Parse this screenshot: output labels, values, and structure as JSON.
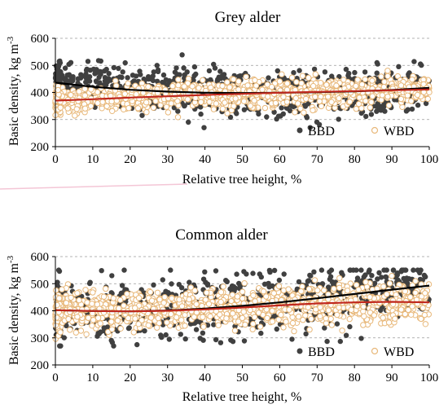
{
  "chart_data": [
    {
      "type": "scatter",
      "title": "Grey alder",
      "xlabel": "Relative tree height, %",
      "ylabel_main": "Basic density, kg m",
      "ylabel_sup": "-3",
      "xlim": [
        0,
        100
      ],
      "ylim": [
        200,
        600
      ],
      "xticks": [
        "0",
        "10",
        "20",
        "30",
        "40",
        "50",
        "60",
        "70",
        "80",
        "90",
        "100"
      ],
      "yticks": [
        "200",
        "300",
        "400",
        "500",
        "600"
      ],
      "gridlines": [
        300,
        400,
        500,
        600
      ],
      "legend_position": "bottom-right",
      "series": [
        {
          "name": "BBD",
          "marker": "filled-circle",
          "color": "#404040",
          "trend": {
            "x": [
              0,
              10,
              20,
              30,
              40,
              50,
              60,
              70,
              80,
              90,
              100
            ],
            "y": [
              436,
              421,
              410,
              403,
              399,
              398,
              399,
              401,
              404,
              409,
              417
            ]
          }
        },
        {
          "name": "WBD",
          "marker": "open-circle",
          "color": "#e8b87a",
          "trend": {
            "x": [
              0,
              10,
              20,
              30,
              40,
              50,
              60,
              70,
              80,
              90,
              100
            ],
            "y": [
              370,
              375,
              381,
              386,
              391,
              395,
              399,
              402,
              405,
              408,
              411
            ]
          }
        }
      ]
    },
    {
      "type": "scatter",
      "title": "Common alder",
      "xlabel": "Relative tree height, %",
      "ylabel_main": "Basic density, kg m",
      "ylabel_sup": "-3",
      "xlim": [
        0,
        100
      ],
      "ylim": [
        200,
        600
      ],
      "xticks": [
        "0",
        "10",
        "20",
        "30",
        "40",
        "50",
        "60",
        "70",
        "80",
        "90",
        "100"
      ],
      "yticks": [
        "200",
        "300",
        "400",
        "500",
        "600"
      ],
      "gridlines": [
        300,
        400,
        500,
        600
      ],
      "legend_position": "bottom-right",
      "series": [
        {
          "name": "BBD",
          "marker": "filled-circle",
          "color": "#404040",
          "trend": {
            "x": [
              0,
              10,
              20,
              30,
              40,
              50,
              60,
              70,
              80,
              90,
              100
            ],
            "y": [
              402,
              399,
              398,
              401,
              408,
              418,
              431,
              446,
              462,
              478,
              493
            ]
          }
        },
        {
          "name": "WBD",
          "marker": "open-circle",
          "color": "#e8b87a",
          "trend": {
            "x": [
              0,
              10,
              20,
              30,
              40,
              50,
              60,
              70,
              80,
              90,
              100
            ],
            "y": [
              402,
              399,
              398,
              400,
              405,
              412,
              420,
              427,
              431,
              433,
              431
            ]
          }
        }
      ]
    }
  ]
}
